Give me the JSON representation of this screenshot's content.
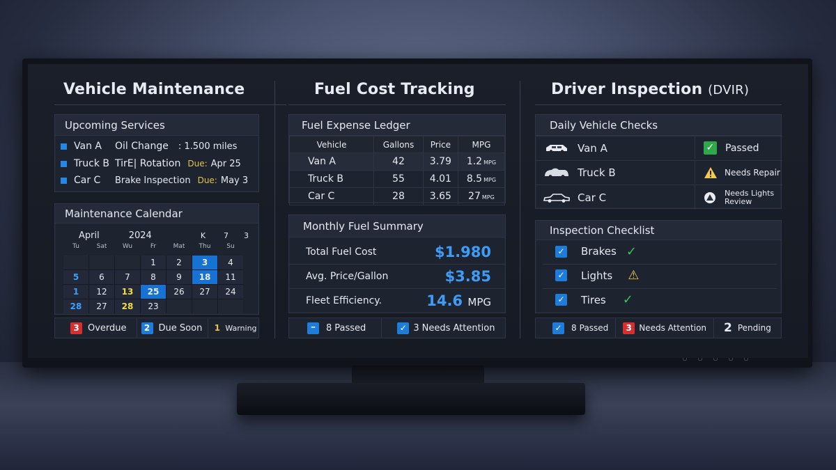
{
  "columns": {
    "maintenance": {
      "title": "Vehicle Maintenance",
      "upcoming": {
        "title": "Upcoming Services",
        "rows": [
          {
            "vehicle": "Van A",
            "service": "Oil Change",
            "due_label": "",
            "due": ": 1.500 miles"
          },
          {
            "vehicle": "Truck B",
            "service": "TirE| Rotation",
            "due_label": "Due:",
            "due": "Apr 25"
          },
          {
            "vehicle": "Car C",
            "service": "Brake Inspection",
            "due_label": "Due:",
            "due": "May 3"
          }
        ]
      },
      "calendar": {
        "title": "Maintenance Calendar",
        "month": "April",
        "year": "2024",
        "controls": [
          "K",
          "7",
          "3"
        ],
        "weekdays": [
          "Tu",
          "Sat",
          "Wu",
          "Fr",
          "Mat",
          "Thu",
          "Su"
        ],
        "rows": [
          [
            "",
            "",
            "",
            "1",
            "2",
            "3",
            "4"
          ],
          [
            "5",
            "6",
            "7",
            "8",
            "9",
            "18",
            "11"
          ],
          [
            "1",
            "12",
            "13",
            "25",
            "26",
            "27",
            "24"
          ],
          [
            "28",
            "27",
            "28",
            "23",
            "",
            "",
            ""
          ]
        ]
      },
      "legend": [
        {
          "count": "3",
          "label": "Overdue",
          "color": "#d72f2f"
        },
        {
          "count": "2",
          "label": "Due Soon",
          "color": "#1e7ddb"
        },
        {
          "count": "1",
          "label": "Warning",
          "color": "#e8c23a"
        }
      ]
    },
    "fuel": {
      "title": "Fuel Cost Tracking",
      "ledger": {
        "title": "Fuel Expense Ledger",
        "headers": [
          "Vehicle",
          "Gallons",
          "Price",
          "MPG"
        ],
        "rows": [
          {
            "vehicle": "Van A",
            "gallons": "42",
            "price": "3.79",
            "mpg": "1.2",
            "unit": "MPG"
          },
          {
            "vehicle": "Truck B",
            "gallons": "55",
            "price": "4.01",
            "mpg": "8.5",
            "unit": "MPG"
          },
          {
            "vehicle": "Car C",
            "gallons": "28",
            "price": "3.65",
            "mpg": "27",
            "unit": "MPG"
          }
        ]
      },
      "summary": {
        "title": "Monthly Fuel Summary",
        "total_label": "Total Fuel Cost",
        "total": "$1.980",
        "avg_label": "Avg. Price/Gallon",
        "avg": "$3.85",
        "eff_label": "Fleet Efficiency.",
        "eff": "14.6",
        "eff_unit": "MPG"
      },
      "footer": {
        "passed_count": "8",
        "passed_label": "Passed",
        "attention_count": "3",
        "attention_label": "Needs Attention"
      }
    },
    "dvir": {
      "title": "Driver Inspection",
      "title_suffix": "(DVIR)",
      "daily": {
        "title": "Daily Vehicle Checks",
        "rows": [
          {
            "vehicle": "Van A",
            "status": "Passed",
            "icon": "check-icon"
          },
          {
            "vehicle": "Truck B",
            "status": "Needs Repair",
            "icon": "warning-icon"
          },
          {
            "vehicle": "Car C",
            "status": "Needs Lights Review",
            "icon": "alert-icon"
          }
        ]
      },
      "checklist": {
        "title": "Inspection Checklist",
        "items": [
          {
            "label": "Brakes",
            "mark": "✓"
          },
          {
            "label": "Lights",
            "mark": "⚠"
          },
          {
            "label": "Tires",
            "mark": "✓"
          }
        ]
      },
      "footer": {
        "passed_count": "8",
        "passed_label": "Passed",
        "attention_count": "3",
        "attention_label": "Needs Attention",
        "pending_count": "2",
        "pending_label": "Pending"
      }
    }
  },
  "colors": {
    "accent": "#2389e8",
    "value_blue": "#3d9cf5",
    "warning": "#e8c23a",
    "danger": "#d72f2f",
    "success": "#2ea84b"
  }
}
